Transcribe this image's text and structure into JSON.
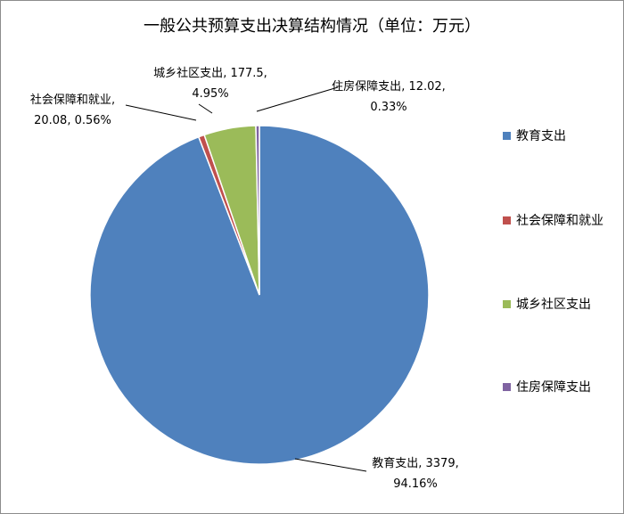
{
  "chart_data": {
    "type": "pie",
    "title": "一般公共预算支出决算结构情况（单位：万元）",
    "categories": [
      "教育支出",
      "社会保障和就业",
      "城乡社区支出",
      "住房保障支出"
    ],
    "values": [
      3379,
      20.08,
      177.5,
      12.02
    ],
    "percentages": [
      94.16,
      0.56,
      4.95,
      0.33
    ],
    "percentage_labels": [
      "94.16%",
      "0.56%",
      "4.95%",
      "0.33%"
    ],
    "label_separator": ", ",
    "colors": [
      "#4f81bd",
      "#c0504d",
      "#9bbb59",
      "#8064a2"
    ],
    "legend": "right"
  }
}
